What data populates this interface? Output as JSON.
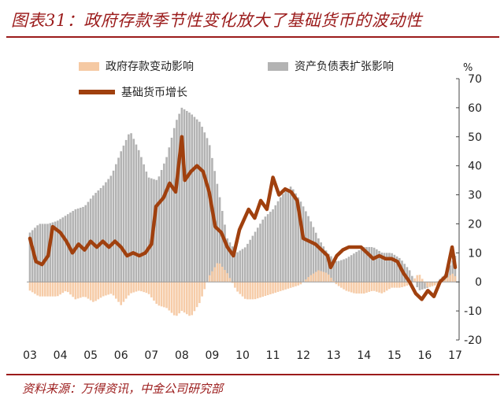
{
  "header": {
    "title": "图表31：政府存款季节性变化放大了基础货币的波动性"
  },
  "footer": {
    "source": "资料来源：万得资讯，中金公司研究部"
  },
  "colors": {
    "accent": "#9b1b1b",
    "government_deposit": "#f5c9a3",
    "balance_sheet": "#b3b3b3",
    "base_money": "#a0400e"
  },
  "chart_data": {
    "type": "bar",
    "unit": "%",
    "ylim": [
      -20,
      70
    ],
    "yticks": [
      -20,
      -10,
      0,
      10,
      20,
      30,
      40,
      50,
      60,
      70
    ],
    "xlabels": [
      "03",
      "04",
      "05",
      "06",
      "07",
      "08",
      "09",
      "10",
      "11",
      "12",
      "13",
      "14",
      "15",
      "16",
      "17"
    ],
    "xrange": [
      2003.0,
      2017.0
    ],
    "legend": [
      {
        "name": "政府存款变动影响",
        "kind": "bar"
      },
      {
        "name": "资产负债表扩张影响",
        "kind": "bar"
      },
      {
        "name": "基础货币增长",
        "kind": "line"
      }
    ],
    "series": [
      {
        "name": "资产负债表扩张影响",
        "type": "bar",
        "points": [
          [
            2003.0,
            17
          ],
          [
            2003.3,
            20
          ],
          [
            2003.6,
            20
          ],
          [
            2003.9,
            21
          ],
          [
            2004.2,
            23
          ],
          [
            2004.5,
            25
          ],
          [
            2004.8,
            26
          ],
          [
            2005.1,
            30
          ],
          [
            2005.4,
            33
          ],
          [
            2005.7,
            37
          ],
          [
            2006.0,
            45
          ],
          [
            2006.3,
            52
          ],
          [
            2006.6,
            45
          ],
          [
            2006.9,
            36
          ],
          [
            2007.2,
            35
          ],
          [
            2007.5,
            43
          ],
          [
            2007.8,
            55
          ],
          [
            2008.0,
            60
          ],
          [
            2008.3,
            58
          ],
          [
            2008.6,
            55
          ],
          [
            2008.9,
            48
          ],
          [
            2009.2,
            32
          ],
          [
            2009.5,
            15
          ],
          [
            2009.8,
            10
          ],
          [
            2010.1,
            12
          ],
          [
            2010.4,
            17
          ],
          [
            2010.7,
            22
          ],
          [
            2011.0,
            25
          ],
          [
            2011.3,
            30
          ],
          [
            2011.6,
            33
          ],
          [
            2011.9,
            28
          ],
          [
            2012.2,
            22
          ],
          [
            2012.5,
            15
          ],
          [
            2012.8,
            10
          ],
          [
            2013.1,
            7
          ],
          [
            2013.4,
            8
          ],
          [
            2013.7,
            10
          ],
          [
            2014.0,
            12
          ],
          [
            2014.3,
            12
          ],
          [
            2014.6,
            10
          ],
          [
            2014.9,
            10
          ],
          [
            2015.2,
            8
          ],
          [
            2015.5,
            4
          ],
          [
            2015.8,
            -3
          ],
          [
            2016.1,
            -2
          ],
          [
            2016.4,
            0
          ],
          [
            2016.7,
            3
          ],
          [
            2016.9,
            7
          ],
          [
            2017.0,
            9
          ]
        ]
      },
      {
        "name": "政府存款变动影响",
        "type": "bar",
        "points": [
          [
            2003.0,
            -3
          ],
          [
            2003.3,
            -5
          ],
          [
            2003.6,
            -5
          ],
          [
            2003.9,
            -5
          ],
          [
            2004.2,
            -3
          ],
          [
            2004.5,
            -6
          ],
          [
            2004.8,
            -5
          ],
          [
            2005.1,
            -7
          ],
          [
            2005.4,
            -5
          ],
          [
            2005.7,
            -4
          ],
          [
            2006.0,
            -8
          ],
          [
            2006.3,
            -4
          ],
          [
            2006.6,
            -3
          ],
          [
            2006.9,
            -4
          ],
          [
            2007.2,
            -8
          ],
          [
            2007.5,
            -9
          ],
          [
            2007.8,
            -12
          ],
          [
            2008.0,
            -10
          ],
          [
            2008.3,
            -12
          ],
          [
            2008.6,
            -7
          ],
          [
            2008.9,
            2
          ],
          [
            2009.2,
            7
          ],
          [
            2009.5,
            3
          ],
          [
            2009.8,
            -3
          ],
          [
            2010.1,
            -6
          ],
          [
            2010.4,
            -6
          ],
          [
            2010.7,
            -5
          ],
          [
            2011.0,
            -4
          ],
          [
            2011.3,
            -3
          ],
          [
            2011.6,
            -2
          ],
          [
            2011.9,
            -1
          ],
          [
            2012.2,
            2
          ],
          [
            2012.5,
            4
          ],
          [
            2012.8,
            3
          ],
          [
            2013.1,
            -1
          ],
          [
            2013.4,
            -3
          ],
          [
            2013.7,
            -4
          ],
          [
            2014.0,
            -4
          ],
          [
            2014.3,
            -3
          ],
          [
            2014.6,
            -4
          ],
          [
            2014.9,
            -2
          ],
          [
            2015.2,
            -2
          ],
          [
            2015.5,
            -1
          ],
          [
            2015.8,
            3
          ],
          [
            2016.1,
            -2
          ],
          [
            2016.4,
            -1
          ],
          [
            2016.7,
            1
          ],
          [
            2016.9,
            3
          ],
          [
            2017.0,
            2
          ]
        ]
      },
      {
        "name": "基础货币增长",
        "type": "line",
        "points": [
          [
            2003.0,
            15
          ],
          [
            2003.2,
            7
          ],
          [
            2003.4,
            6
          ],
          [
            2003.6,
            9
          ],
          [
            2003.75,
            19
          ],
          [
            2004.0,
            17
          ],
          [
            2004.2,
            14
          ],
          [
            2004.4,
            10
          ],
          [
            2004.6,
            13
          ],
          [
            2004.8,
            11
          ],
          [
            2005.0,
            14
          ],
          [
            2005.2,
            12
          ],
          [
            2005.4,
            14
          ],
          [
            2005.6,
            12
          ],
          [
            2005.8,
            14
          ],
          [
            2006.0,
            12
          ],
          [
            2006.2,
            9
          ],
          [
            2006.4,
            10
          ],
          [
            2006.6,
            9
          ],
          [
            2006.8,
            10
          ],
          [
            2007.0,
            13
          ],
          [
            2007.15,
            26
          ],
          [
            2007.4,
            29
          ],
          [
            2007.6,
            34
          ],
          [
            2007.8,
            31
          ],
          [
            2008.0,
            50
          ],
          [
            2008.1,
            35
          ],
          [
            2008.3,
            38
          ],
          [
            2008.5,
            40
          ],
          [
            2008.7,
            38
          ],
          [
            2008.9,
            31
          ],
          [
            2009.1,
            19
          ],
          [
            2009.3,
            17
          ],
          [
            2009.5,
            12
          ],
          [
            2009.7,
            9
          ],
          [
            2009.9,
            18
          ],
          [
            2010.2,
            25
          ],
          [
            2010.4,
            22
          ],
          [
            2010.6,
            28
          ],
          [
            2010.8,
            25
          ],
          [
            2011.0,
            36
          ],
          [
            2011.2,
            30
          ],
          [
            2011.4,
            32
          ],
          [
            2011.6,
            31
          ],
          [
            2011.8,
            28
          ],
          [
            2012.0,
            15
          ],
          [
            2012.2,
            14
          ],
          [
            2012.4,
            13
          ],
          [
            2012.6,
            11
          ],
          [
            2012.8,
            9
          ],
          [
            2012.9,
            5
          ],
          [
            2013.1,
            9
          ],
          [
            2013.3,
            11
          ],
          [
            2013.5,
            12
          ],
          [
            2013.7,
            12
          ],
          [
            2013.9,
            12
          ],
          [
            2014.1,
            10
          ],
          [
            2014.3,
            8
          ],
          [
            2014.5,
            9
          ],
          [
            2014.7,
            8
          ],
          [
            2014.9,
            8
          ],
          [
            2015.1,
            7
          ],
          [
            2015.3,
            3
          ],
          [
            2015.5,
            0
          ],
          [
            2015.7,
            -4
          ],
          [
            2015.9,
            -6
          ],
          [
            2016.1,
            -3
          ],
          [
            2016.3,
            -5
          ],
          [
            2016.5,
            0
          ],
          [
            2016.7,
            2
          ],
          [
            2016.9,
            12
          ],
          [
            2017.0,
            5
          ]
        ]
      }
    ]
  }
}
